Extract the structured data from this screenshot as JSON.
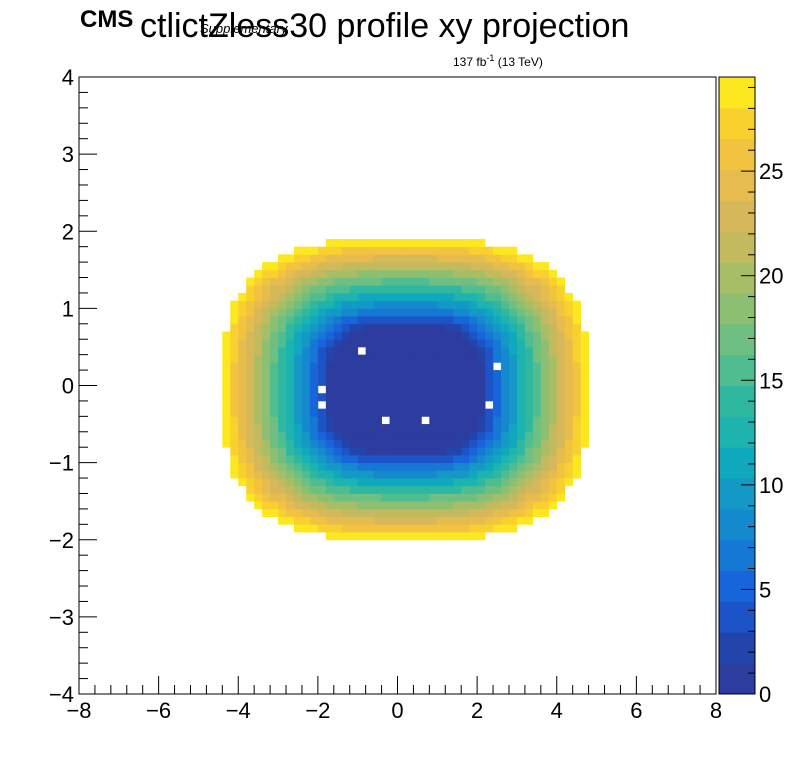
{
  "chart_data": {
    "type": "heatmap",
    "title": "ctlictZless30 profile xy projection",
    "experiment_label": "CMS",
    "experiment_sublabel": "Supplementary",
    "lumi_label": "137 fb",
    "lumi_exponent": "-1",
    "lumi_energy": " (13 TeV)",
    "xlabel": "",
    "ylabel": "",
    "xlim": [
      -8,
      8
    ],
    "ylim": [
      -4,
      4
    ],
    "xticks": [
      -8,
      -6,
      -4,
      -2,
      0,
      2,
      4,
      6,
      8
    ],
    "xtick_labels": [
      "−8",
      "−6",
      "−4",
      "−2",
      "0",
      "2",
      "4",
      "6",
      "8"
    ],
    "yticks": [
      -4,
      -3,
      -2,
      -1,
      0,
      1,
      2,
      3,
      4
    ],
    "ytick_labels": [
      "−4",
      "−3",
      "−2",
      "−1",
      "0",
      "1",
      "2",
      "3",
      "4"
    ],
    "z_range": [
      0,
      29.5
    ],
    "zticks": [
      0,
      5,
      10,
      15,
      20,
      25
    ],
    "ztick_labels": [
      "0",
      "5",
      "10",
      "15",
      "20",
      "25"
    ],
    "z_levels": 20,
    "bins_x": 80,
    "bins_y": 80,
    "grid": false,
    "palette": [
      "#2d3d9f",
      "#2244ab",
      "#1c54c7",
      "#1765da",
      "#1478d4",
      "#1589ce",
      "#1499c7",
      "#10a8bd",
      "#1db3ae",
      "#2fb89f",
      "#4fbd90",
      "#6ebf81",
      "#8cbf72",
      "#a8be66",
      "#c2ba5d",
      "#d6b85a",
      "#e6bc4e",
      "#f2c33e",
      "#f9d12f",
      "#fde71f",
      "#f9fb0e"
    ],
    "empty_bins": [
      {
        "x": -0.9,
        "y": 0.45
      },
      {
        "x": 2.5,
        "y": 0.2
      },
      {
        "x": -2.0,
        "y": -0.1
      },
      {
        "x": -1.85,
        "y": -0.2
      },
      {
        "x": 2.3,
        "y": -0.2
      },
      {
        "x": -0.25,
        "y": -0.42
      },
      {
        "x": 0.7,
        "y": -0.42
      }
    ],
    "shape": {
      "center_x": 0.2,
      "center_y": -0.05,
      "outer_radius_x": 4.6,
      "outer_radius_y": 1.95,
      "superellipse_power": 3.0,
      "core_radius_x": 1.75,
      "core_radius_y": 0.9,
      "core_value": 1.0,
      "edge_value": 29.5
    }
  }
}
